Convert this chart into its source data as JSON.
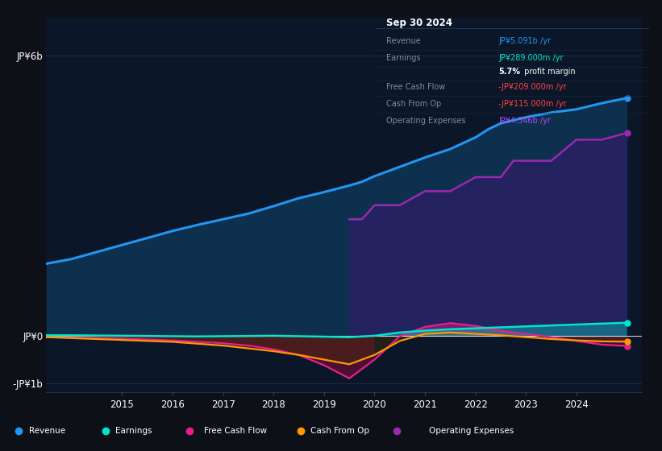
{
  "background_color": "#0d1117",
  "chart_bg": "#0b1628",
  "title": "Sep 30 2024",
  "ylim": [
    -1200000000.0,
    6800000000.0
  ],
  "xlim": [
    2013.5,
    2025.3
  ],
  "y_zero": 0,
  "y_6b": 6000000000.0,
  "y_neg1b": -1000000000.0,
  "xtick_years": [
    2015,
    2016,
    2017,
    2018,
    2019,
    2020,
    2021,
    2022,
    2023,
    2024
  ],
  "colors": {
    "revenue": "#2196f3",
    "revenue_fill": "#0d3a5c",
    "earnings": "#00e5cc",
    "free_cash_flow": "#e91e8c",
    "cash_from_op": "#ff9800",
    "operating_expenses": "#9c27b0",
    "operating_expenses_fill": "#3a1a6e"
  },
  "revenue_x": [
    2013.5,
    2014.0,
    2014.5,
    2015.0,
    2015.5,
    2016.0,
    2016.5,
    2017.0,
    2017.5,
    2018.0,
    2018.5,
    2019.0,
    2019.5,
    2019.75,
    2020.0,
    2020.25,
    2020.5,
    2020.75,
    2021.0,
    2021.5,
    2022.0,
    2022.25,
    2022.5,
    2023.0,
    2023.5,
    2024.0,
    2024.5,
    2025.0
  ],
  "revenue_y": [
    1550000000.0,
    1650000000.0,
    1800000000.0,
    1950000000.0,
    2100000000.0,
    2250000000.0,
    2380000000.0,
    2500000000.0,
    2620000000.0,
    2780000000.0,
    2950000000.0,
    3080000000.0,
    3220000000.0,
    3300000000.0,
    3420000000.0,
    3520000000.0,
    3620000000.0,
    3720000000.0,
    3820000000.0,
    4000000000.0,
    4250000000.0,
    4420000000.0,
    4550000000.0,
    4680000000.0,
    4780000000.0,
    4850000000.0,
    4980000000.0,
    5091000000.0
  ],
  "earnings_x": [
    2013.5,
    2014.0,
    2014.5,
    2015.0,
    2015.5,
    2016.0,
    2016.5,
    2017.0,
    2017.5,
    2018.0,
    2018.5,
    2019.0,
    2019.5,
    2020.0,
    2020.5,
    2021.0,
    2021.5,
    2022.0,
    2022.5,
    2023.0,
    2023.5,
    2024.0,
    2025.0
  ],
  "earnings_y": [
    20000000.0,
    20000000.0,
    15000000.0,
    10000000.0,
    5000000.0,
    0.0,
    -5000000.0,
    0.0,
    5000000.0,
    10000000.0,
    0.0,
    -10000000.0,
    -20000000.0,
    10000000.0,
    80000000.0,
    120000000.0,
    150000000.0,
    170000000.0,
    190000000.0,
    210000000.0,
    230000000.0,
    250000000.0,
    289000000.0
  ],
  "fcf_x": [
    2013.5,
    2014.0,
    2014.5,
    2015.0,
    2015.5,
    2016.0,
    2016.5,
    2017.0,
    2017.5,
    2018.0,
    2018.5,
    2019.0,
    2019.5,
    2020.0,
    2020.5,
    2021.0,
    2021.5,
    2022.0,
    2022.5,
    2023.0,
    2023.5,
    2024.0,
    2024.5,
    2025.0
  ],
  "fcf_y": [
    -20000000.0,
    -30000000.0,
    -40000000.0,
    -50000000.0,
    -70000000.0,
    -90000000.0,
    -120000000.0,
    -150000000.0,
    -200000000.0,
    -280000000.0,
    -400000000.0,
    -620000000.0,
    -900000000.0,
    -500000000.0,
    0.0,
    200000000.0,
    280000000.0,
    220000000.0,
    120000000.0,
    50000000.0,
    -20000000.0,
    -100000000.0,
    -180000000.0,
    -209000000.0
  ],
  "cfop_x": [
    2013.5,
    2014.0,
    2014.5,
    2015.0,
    2015.5,
    2016.0,
    2016.5,
    2017.0,
    2017.5,
    2018.0,
    2018.5,
    2019.0,
    2019.5,
    2020.0,
    2020.5,
    2021.0,
    2021.5,
    2022.0,
    2022.5,
    2023.0,
    2023.5,
    2024.0,
    2024.5,
    2025.0
  ],
  "cfop_y": [
    -20000000.0,
    -40000000.0,
    -60000000.0,
    -80000000.0,
    -100000000.0,
    -120000000.0,
    -160000000.0,
    -200000000.0,
    -260000000.0,
    -320000000.0,
    -400000000.0,
    -500000000.0,
    -600000000.0,
    -400000000.0,
    -100000000.0,
    50000000.0,
    80000000.0,
    50000000.0,
    20000000.0,
    -20000000.0,
    -60000000.0,
    -90000000.0,
    -110000000.0,
    -115000000.0
  ],
  "opex_x": [
    2019.5,
    2019.75,
    2020.0,
    2020.5,
    2021.0,
    2021.5,
    2022.0,
    2022.5,
    2022.75,
    2023.0,
    2023.5,
    2024.0,
    2024.5,
    2025.0
  ],
  "opex_y": [
    2500000000.0,
    2500000000.0,
    2800000000.0,
    2800000000.0,
    3100000000.0,
    3100000000.0,
    3400000000.0,
    3400000000.0,
    3750000000.0,
    3750000000.0,
    3750000000.0,
    4200000000.0,
    4200000000.0,
    4346000000.0
  ],
  "legend": [
    {
      "label": "Revenue",
      "color": "#2196f3"
    },
    {
      "label": "Earnings",
      "color": "#00e5cc"
    },
    {
      "label": "Free Cash Flow",
      "color": "#e91e8c"
    },
    {
      "label": "Cash From Op",
      "color": "#ff9800"
    },
    {
      "label": "Operating Expenses",
      "color": "#9c27b0"
    }
  ],
  "info_title": "Sep 30 2024",
  "info_rows": [
    {
      "label": "Revenue",
      "value": "JP¥5.091b /yr",
      "vcolor": "#2196f3"
    },
    {
      "label": "Earnings",
      "value": "JP¥289.000m /yr",
      "vcolor": "#00e5cc"
    },
    {
      "label": "",
      "value": "5.7% profit margin",
      "vcolor": "#ffffff"
    },
    {
      "label": "Free Cash Flow",
      "value": "-JP¥209.000m /yr",
      "vcolor": "#ff4444"
    },
    {
      "label": "Cash From Op",
      "value": "-JP¥115.000m /yr",
      "vcolor": "#ff4444"
    },
    {
      "label": "Operating Expenses",
      "value": "JP¥4.346b /yr",
      "vcolor": "#bb44ff"
    }
  ]
}
